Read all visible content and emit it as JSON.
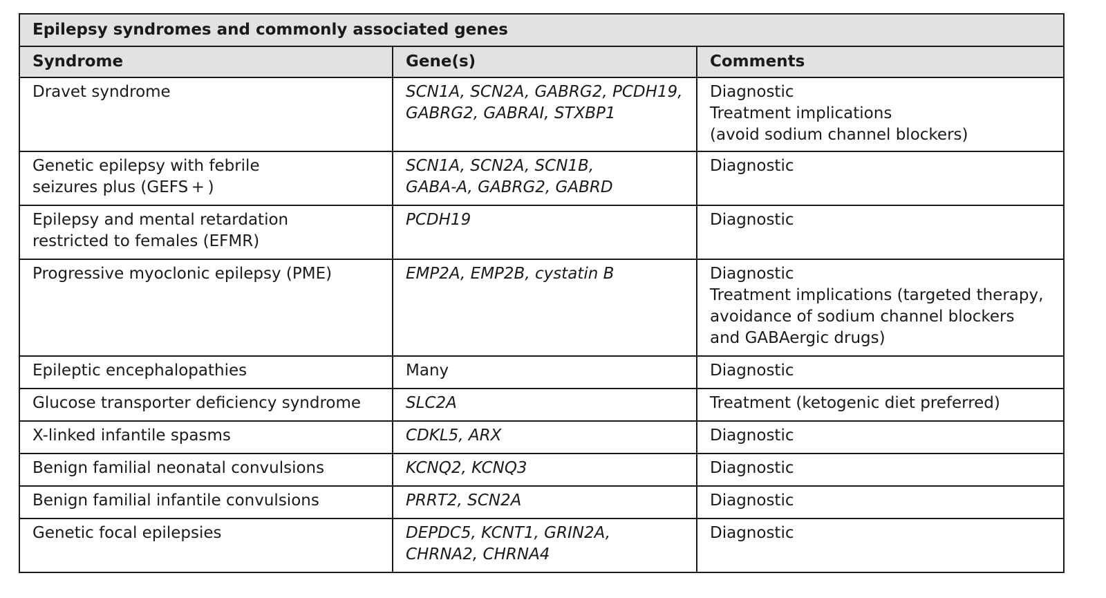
{
  "table": {
    "caption": "Epilepsy syndromes and commonly associated genes",
    "headers": [
      "Syndrome",
      "Gene(s)",
      "Comments"
    ],
    "rows": [
      {
        "syndrome": [
          "Dravet syndrome"
        ],
        "genes": [
          "SCN1A, SCN2A, GABRG2, PCDH19,",
          "GABRG2, GABRAI, STXBP1"
        ],
        "genes_italic": true,
        "comments": [
          "Diagnostic",
          "Treatment implications",
          "(avoid sodium channel blockers)"
        ]
      },
      {
        "syndrome": [
          "Genetic epilepsy with febrile",
          "seizures plus (GEFS + )"
        ],
        "genes": [
          "SCN1A, SCN2A, SCN1B,",
          "GABA-A, GABRG2, GABRD"
        ],
        "genes_italic": true,
        "comments": [
          "Diagnostic"
        ]
      },
      {
        "syndrome": [
          "Epilepsy and mental retardation",
          "restricted to females (EFMR)"
        ],
        "genes": [
          "PCDH19"
        ],
        "genes_italic": true,
        "comments": [
          "Diagnostic"
        ]
      },
      {
        "syndrome": [
          "Progressive myoclonic epilepsy (PME)"
        ],
        "genes": [
          "EMP2A, EMP2B, cystatin B"
        ],
        "genes_italic": true,
        "comments": [
          "Diagnostic",
          "Treatment implications (targeted therapy,",
          "avoidance of sodium channel blockers",
          "and GABAergic drugs)"
        ]
      },
      {
        "syndrome": [
          "Epileptic encephalopathies"
        ],
        "genes": [
          "Many"
        ],
        "genes_italic": false,
        "comments": [
          "Diagnostic"
        ]
      },
      {
        "syndrome": [
          "Glucose transporter deficiency syndrome"
        ],
        "genes": [
          "SLC2A"
        ],
        "genes_italic": true,
        "comments": [
          "Treatment (ketogenic diet preferred)"
        ]
      },
      {
        "syndrome": [
          "X-linked infantile spasms"
        ],
        "genes": [
          "CDKL5, ARX"
        ],
        "genes_italic": true,
        "comments": [
          "Diagnostic"
        ]
      },
      {
        "syndrome": [
          "Benign familial neonatal convulsions"
        ],
        "genes": [
          "KCNQ2, KCNQ3"
        ],
        "genes_italic": true,
        "comments": [
          "Diagnostic"
        ]
      },
      {
        "syndrome": [
          "Benign familial infantile convulsions"
        ],
        "genes": [
          "PRRT2, SCN2A"
        ],
        "genes_italic": true,
        "comments": [
          "Diagnostic"
        ]
      },
      {
        "syndrome": [
          "Genetic focal epilepsies"
        ],
        "genes": [
          "DEPDC5, KCNT1, GRIN2A,",
          "CHRNA2, CHRNA4"
        ],
        "genes_italic": true,
        "comments": [
          "Diagnostic"
        ]
      }
    ]
  }
}
